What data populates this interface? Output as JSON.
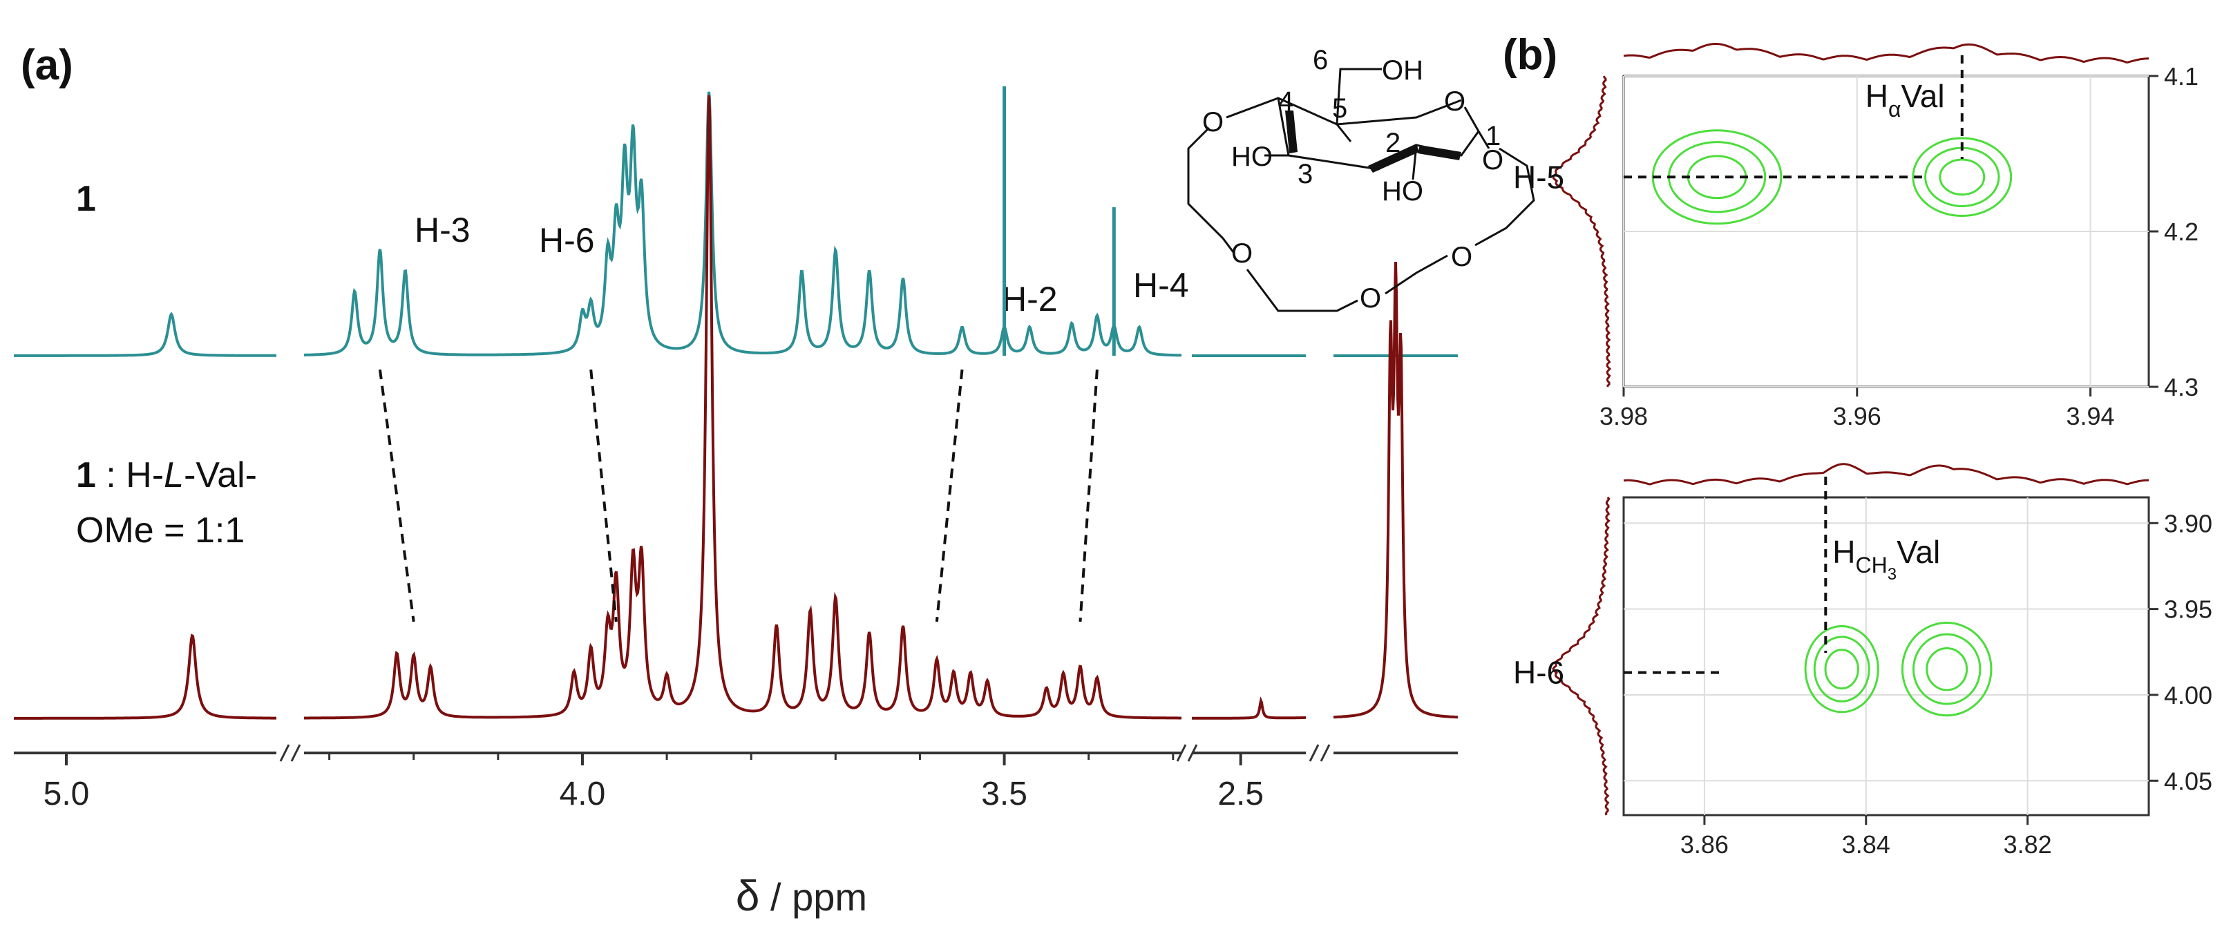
{
  "colors": {
    "free_trace": "#2b8f93",
    "complex_trace": "#7b0f0f",
    "contour": "#4cdd3c",
    "axis": "#333333",
    "grid": "#dddddd",
    "text": "#111111"
  },
  "panel_a": {
    "label": "(a)",
    "trace_top_label": "1",
    "trace_bottom_label_line1_bold": "1",
    "trace_bottom_label_line1_prefix": " : H-",
    "trace_bottom_label_line1_italic": "L",
    "trace_bottom_label_line1_suffix": "-Val-",
    "trace_bottom_label_line2": "OMe = 1:1",
    "xlabel_symbol": "δ",
    "xlabel_unit": " / ppm",
    "molecule_numbers": [
      "6",
      "4",
      "5",
      "1",
      "3",
      "2"
    ],
    "molecule_oh_labels": [
      "OH",
      "HO",
      "HO"
    ],
    "molecule_o_labels": [
      "O",
      "O",
      "O",
      "O",
      "O",
      "O"
    ]
  },
  "panel_b": {
    "label": "(b)"
  },
  "chart_data": [
    {
      "type": "line",
      "title": "",
      "xlabel": "δ / ppm",
      "ylabel": "",
      "reversed_x": true,
      "broken_axis_segments": [
        [
          5.05,
          4.8
        ],
        [
          4.33,
          3.29
        ],
        [
          2.62,
          2.34
        ],
        [
          2.3,
          2.06
        ]
      ],
      "x_ticks": [
        5.0,
        4.0,
        3.5,
        2.5
      ],
      "series": [
        {
          "name": "1",
          "peaks_ppm": [
            4.9,
            4.27,
            4.24,
            4.21,
            4.0,
            3.99,
            3.97,
            3.96,
            3.95,
            3.94,
            3.93,
            3.85,
            3.74,
            3.7,
            3.66,
            3.62,
            3.55,
            3.5,
            3.47,
            3.42,
            3.39,
            3.37,
            3.34
          ]
        },
        {
          "name": "1 : H-L-Val-OMe = 1:1",
          "peaks_ppm": [
            4.88,
            4.22,
            4.2,
            4.18,
            4.01,
            3.99,
            3.97,
            3.96,
            3.94,
            3.93,
            3.9,
            3.85,
            3.77,
            3.73,
            3.7,
            3.66,
            3.62,
            3.58,
            3.56,
            3.54,
            3.52,
            3.45,
            3.43,
            3.41,
            3.39,
            2.45,
            2.19,
            2.18,
            2.17
          ]
        }
      ],
      "annotations": [
        {
          "text": "H-3",
          "from_ppm": 4.24,
          "to_ppm": 4.2
        },
        {
          "text": "H-6",
          "from_ppm": 3.99,
          "to_ppm": 3.96
        },
        {
          "text": "H-2",
          "from_ppm": 3.55,
          "to_ppm": 3.58
        },
        {
          "text": "H-4",
          "from_ppm": 3.39,
          "to_ppm": 3.41
        }
      ]
    },
    {
      "type": "heatmap",
      "title": "",
      "xlim": [
        3.98,
        3.935
      ],
      "ylim": [
        4.1,
        4.3
      ],
      "x_ticks": [
        3.98,
        3.96,
        3.94
      ],
      "y_ticks": [
        4.1,
        4.2,
        4.3
      ],
      "contours": [
        {
          "cx": 3.972,
          "cy": 4.165,
          "rx": 0.0055,
          "ry": 0.03
        },
        {
          "cx": 3.951,
          "cy": 4.165,
          "rx": 0.0042,
          "ry": 0.025
        }
      ],
      "annotations": [
        {
          "text": "H",
          "sub": "α",
          "suffix": "Val",
          "axis": "x",
          "at": 3.951
        },
        {
          "text": "H-5",
          "axis": "y",
          "at": 4.165
        }
      ]
    },
    {
      "type": "heatmap",
      "title": "",
      "xlim": [
        3.87,
        3.805
      ],
      "ylim": [
        3.885,
        4.07
      ],
      "x_ticks": [
        3.86,
        3.84,
        3.82
      ],
      "y_ticks": [
        3.9,
        3.95,
        4.0,
        4.05
      ],
      "contours": [
        {
          "cx": 3.843,
          "cy": 3.985,
          "rx": 0.0045,
          "ry": 0.025
        },
        {
          "cx": 3.83,
          "cy": 3.985,
          "rx": 0.0055,
          "ry": 0.027
        }
      ],
      "annotations": [
        {
          "text": "H",
          "sub": "CH",
          "subsub": "3",
          "suffix": "Val",
          "axis": "x",
          "at": 3.845
        },
        {
          "text": "H-6",
          "axis": "y",
          "at": 3.987
        }
      ]
    }
  ]
}
